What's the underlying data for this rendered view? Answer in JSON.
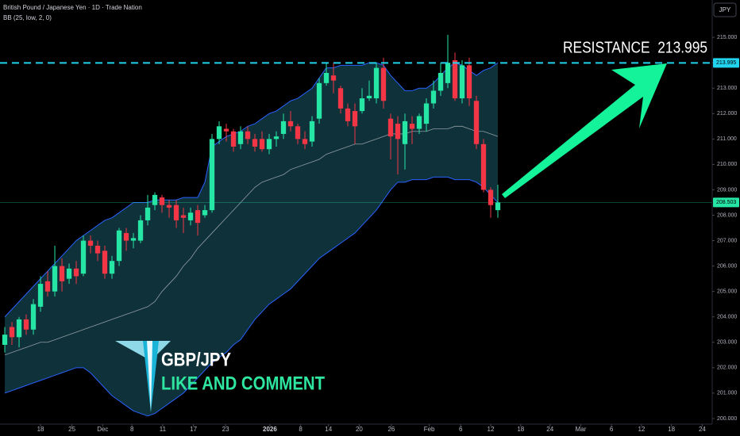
{
  "chart_data": {
    "type": "candlestick",
    "title": "British Pound / Japanese Yen · 1D · Trade Nation",
    "indicator": "BB (25, low, 2, 0)",
    "currency_button": "JPY",
    "up_color": "#26e6a6",
    "down_color": "#f23645",
    "band_color": "#2962ff",
    "band_fill": "#14434d",
    "middle_color": "#b2b5be",
    "open": [
      202.9,
      203.6,
      203.2,
      203.9,
      203.5,
      204.4,
      205.4,
      205.0,
      206.0,
      205.5,
      205.9,
      205.7,
      207.0,
      206.8,
      206.6,
      205.7,
      206.2,
      207.3,
      207.0,
      207.0,
      207.8,
      208.4,
      208.7,
      208.4,
      208.4,
      208.0,
      207.8,
      208.2,
      208.0,
      208.2,
      211.0,
      211.4,
      211.3,
      210.8,
      211.3,
      211.0,
      211.0,
      210.6,
      211.0,
      211.2,
      211.7,
      211.5,
      211.0,
      210.9,
      211.8,
      213.2,
      213.5,
      213.0,
      212.2,
      212.1,
      212.1,
      212.6,
      212.6,
      213.8,
      211.8,
      211.6,
      210.8,
      211.6,
      211.4,
      211.6,
      212.4,
      212.9,
      213.2,
      214.1,
      212.6,
      213.9,
      212.5,
      210.8,
      209.0,
      208.2
    ],
    "high": [
      203.6,
      203.8,
      204.0,
      204.1,
      204.7,
      205.6,
      205.8,
      206.8,
      206.3,
      206.1,
      206.2,
      207.2,
      207.2,
      207.0,
      206.8,
      206.4,
      207.5,
      207.5,
      207.3,
      208.0,
      208.8,
      208.9,
      208.8,
      208.6,
      208.6,
      208.3,
      208.3,
      208.4,
      208.4,
      211.2,
      211.7,
      211.6,
      211.4,
      211.5,
      211.5,
      211.2,
      211.3,
      211.2,
      211.3,
      212.0,
      212.1,
      211.6,
      211.3,
      211.9,
      213.4,
      214.0,
      214.0,
      213.1,
      212.4,
      212.4,
      213.0,
      213.3,
      214.0,
      214.2,
      212.0,
      211.9,
      212.0,
      211.9,
      212.0,
      212.6,
      213.3,
      214.0,
      215.1,
      214.4,
      214.1,
      214.2,
      212.7,
      211.0,
      209.1,
      209.2
    ],
    "low": [
      202.6,
      202.9,
      202.8,
      203.3,
      203.3,
      204.2,
      204.8,
      204.8,
      205.0,
      205.3,
      205.3,
      205.6,
      206.5,
      206.2,
      205.5,
      205.5,
      206.0,
      206.6,
      206.7,
      206.9,
      207.6,
      208.2,
      208.1,
      207.9,
      207.5,
      207.3,
      207.6,
      207.2,
      207.9,
      208.1,
      210.8,
      210.9,
      210.5,
      210.6,
      210.8,
      210.5,
      210.5,
      210.4,
      210.7,
      211.0,
      211.3,
      210.8,
      210.6,
      210.7,
      211.6,
      213.1,
      212.8,
      212.0,
      211.5,
      210.8,
      212.0,
      212.5,
      212.4,
      212.2,
      210.2,
      209.6,
      209.8,
      210.8,
      211.2,
      211.3,
      212.2,
      212.7,
      213.0,
      212.5,
      212.4,
      212.3,
      210.6,
      208.9,
      207.9,
      207.9
    ],
    "close": [
      203.3,
      203.2,
      203.9,
      203.5,
      204.5,
      205.3,
      205.0,
      206.0,
      205.4,
      205.9,
      205.6,
      207.0,
      206.8,
      206.5,
      205.7,
      206.2,
      207.4,
      207.0,
      207.1,
      207.8,
      208.3,
      208.8,
      208.4,
      208.3,
      207.8,
      207.9,
      208.1,
      207.7,
      208.2,
      211.0,
      211.5,
      211.3,
      210.7,
      211.3,
      211.0,
      210.7,
      210.6,
      211.0,
      211.1,
      211.7,
      211.5,
      211.0,
      210.8,
      211.7,
      213.2,
      213.6,
      213.3,
      212.2,
      211.7,
      211.5,
      212.6,
      212.7,
      213.8,
      212.5,
      211.1,
      211.0,
      211.7,
      211.4,
      211.9,
      212.4,
      212.9,
      213.6,
      214.0,
      212.6,
      213.9,
      212.6,
      210.8,
      209.0,
      208.4,
      208.5
    ],
    "bands": {
      "upper": [
        204.0,
        204.3,
        204.6,
        204.9,
        205.2,
        205.5,
        205.8,
        206.1,
        206.4,
        206.7,
        207.0,
        207.2,
        207.4,
        207.6,
        207.8,
        207.9,
        208.1,
        208.3,
        208.5,
        208.5,
        208.5,
        208.6,
        208.6,
        208.6,
        208.6,
        208.7,
        208.7,
        208.7,
        209.3,
        210.7,
        210.9,
        211.1,
        211.2,
        211.3,
        211.5,
        211.6,
        211.8,
        212.0,
        212.1,
        212.3,
        212.5,
        212.6,
        212.8,
        213.0,
        213.4,
        213.8,
        213.8,
        213.9,
        213.9,
        213.9,
        213.9,
        214.0,
        214.0,
        213.9,
        213.5,
        213.2,
        212.9,
        212.9,
        213.0,
        213.0,
        213.2,
        213.5,
        213.8,
        214.0,
        213.9,
        213.7,
        213.5,
        213.7,
        213.8,
        214.0
      ],
      "middle": [
        202.5,
        202.6,
        202.7,
        202.8,
        202.9,
        203.0,
        203.0,
        203.1,
        203.2,
        203.3,
        203.4,
        203.5,
        203.6,
        203.7,
        203.8,
        203.9,
        204.0,
        204.1,
        204.2,
        204.3,
        204.4,
        204.6,
        205.0,
        205.3,
        205.6,
        206.0,
        206.3,
        206.7,
        207.0,
        207.3,
        207.6,
        207.9,
        208.2,
        208.5,
        208.8,
        209.1,
        209.3,
        209.4,
        209.5,
        209.6,
        209.8,
        209.9,
        210.0,
        210.1,
        210.2,
        210.4,
        210.5,
        210.6,
        210.7,
        210.8,
        210.8,
        210.9,
        211.0,
        211.1,
        211.2,
        211.2,
        211.2,
        211.3,
        211.3,
        211.3,
        211.4,
        211.4,
        211.4,
        211.5,
        211.5,
        211.4,
        211.3,
        211.3,
        211.2,
        211.1
      ],
      "lower": [
        201.0,
        201.1,
        201.2,
        201.3,
        201.4,
        201.5,
        201.6,
        201.7,
        201.8,
        201.9,
        202.0,
        202.0,
        201.8,
        201.5,
        201.2,
        200.9,
        200.7,
        200.5,
        200.3,
        200.2,
        200.1,
        200.2,
        200.4,
        200.6,
        200.8,
        201.0,
        201.3,
        201.6,
        201.9,
        202.2,
        202.4,
        202.6,
        202.9,
        203.1,
        203.5,
        203.9,
        204.2,
        204.5,
        204.7,
        204.9,
        205.1,
        205.4,
        205.7,
        206.0,
        206.3,
        206.5,
        206.7,
        206.9,
        207.1,
        207.3,
        207.6,
        207.9,
        208.2,
        208.6,
        209.0,
        209.3,
        209.3,
        209.4,
        209.4,
        209.4,
        209.5,
        209.5,
        209.5,
        209.4,
        209.4,
        209.4,
        209.3,
        209.1,
        208.8,
        208.5
      ]
    },
    "xlim": [
      -0.67,
      99
    ],
    "xticks": [
      {
        "value": 5,
        "label": "18"
      },
      {
        "value": 9.4,
        "label": "25"
      },
      {
        "value": 13.7,
        "label": "Dec"
      },
      {
        "value": 17.8,
        "label": "8"
      },
      {
        "value": 22.1,
        "label": "11"
      },
      {
        "value": 26.4,
        "label": "17"
      },
      {
        "value": 30.9,
        "label": "23"
      },
      {
        "value": 37.1,
        "label": "2026"
      },
      {
        "value": 41.4,
        "label": "8"
      },
      {
        "value": 45.3,
        "label": "14"
      },
      {
        "value": 49.6,
        "label": "20"
      },
      {
        "value": 54.1,
        "label": "26"
      },
      {
        "value": 59.4,
        "label": "Feb"
      },
      {
        "value": 63.8,
        "label": "6"
      },
      {
        "value": 68,
        "label": "12"
      },
      {
        "value": 72.2,
        "label": "18"
      },
      {
        "value": 76.3,
        "label": "24"
      },
      {
        "value": 80.6,
        "label": "Mar"
      },
      {
        "value": 84.9,
        "label": "6"
      },
      {
        "value": 89.1,
        "label": "12"
      },
      {
        "value": 93.3,
        "label": "18"
      },
      {
        "value": 97.6,
        "label": "24"
      }
    ],
    "ylim": [
      199.78,
      216.47
    ],
    "yticks": [
      {
        "value": 200,
        "label": "200.000"
      },
      {
        "value": 201,
        "label": "201.000"
      },
      {
        "value": 202,
        "label": "202.000"
      },
      {
        "value": 203,
        "label": "203.000"
      },
      {
        "value": 204,
        "label": "204.000"
      },
      {
        "value": 205,
        "label": "205.000"
      },
      {
        "value": 206,
        "label": "206.000"
      },
      {
        "value": 207,
        "label": "207.000"
      },
      {
        "value": 208,
        "label": "208.000"
      },
      {
        "value": 209,
        "label": "209.000"
      },
      {
        "value": 210,
        "label": "210.000"
      },
      {
        "value": 211,
        "label": "211.000"
      },
      {
        "value": 212,
        "label": "212.000"
      },
      {
        "value": 213,
        "label": "213.000"
      },
      {
        "value": 214,
        "label": "214.000"
      },
      {
        "value": 215,
        "label": "215.000"
      }
    ],
    "grid": false,
    "resistance": {
      "value": 213.995,
      "text": "RESISTANCE  213.995",
      "color": "#22d3ee"
    },
    "current_price": {
      "value": 208.503,
      "color": "#26e6a6"
    },
    "logo_title": "GBP/JPY",
    "logo_subtitle": "LIKE AND COMMENT"
  }
}
